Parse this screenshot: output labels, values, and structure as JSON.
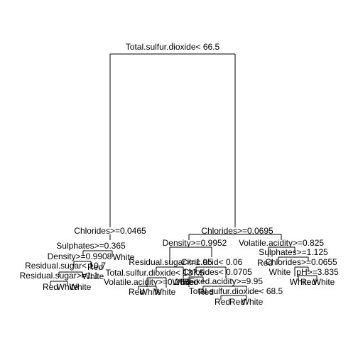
{
  "tree": {
    "root": "Total.sulfur.dioxide< 66.5",
    "split_labels": [
      "Chlorides>=0.0465",
      "Chlorides>=0.0695",
      "Sulphates>=0.365",
      "Density>=0.9908",
      "Residual.sugar< 10.7",
      "Residual.sugar>=1.1",
      "Density>=0.9952",
      "Volatile.acidity>=0.825",
      "Residual.sugar>=1.05",
      "Citric.acid< 0.06",
      "Total.sulfur.dioxide< 137.5",
      "Volatile.acidity>=0.265",
      "Chlorides< 0.0705",
      "Fixed.acidity>=9.95",
      "Total.sulfur.dioxide< 68.5",
      "Sulphates>=1.125",
      "Chlorides>=0.0655",
      "pH>=3.835"
    ],
    "leaf_labels": [
      "White",
      "Red",
      "White",
      "White",
      "White",
      "Red",
      "White",
      "Red",
      "White",
      "White",
      "Red",
      "Red",
      "Red",
      "White",
      "Red",
      "Red",
      "White",
      "Red",
      "White"
    ]
  }
}
